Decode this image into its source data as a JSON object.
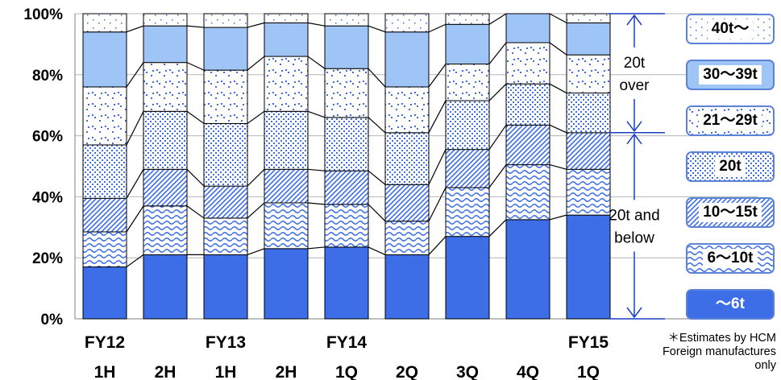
{
  "chart_data": {
    "type": "bar",
    "stacked": true,
    "ylim": [
      0,
      100
    ],
    "yticks": [
      "0%",
      "20%",
      "40%",
      "60%",
      "80%",
      "100%"
    ],
    "categories": [
      {
        "top": "FY12",
        "bottom": "1H"
      },
      {
        "top": "",
        "bottom": "2H"
      },
      {
        "top": "FY13",
        "bottom": "1H"
      },
      {
        "top": "",
        "bottom": "2H"
      },
      {
        "top": "FY14",
        "bottom": "1Q"
      },
      {
        "top": "",
        "bottom": "2Q"
      },
      {
        "top": "",
        "bottom": "3Q"
      },
      {
        "top": "",
        "bottom": "4Q"
      },
      {
        "top": "FY15",
        "bottom": "1Q"
      }
    ],
    "series": [
      {
        "name": "～6t",
        "pattern": "solid",
        "color": "#3d6ee8",
        "values": [
          17,
          21,
          21,
          23,
          23.5,
          21,
          27,
          32.5,
          34
        ]
      },
      {
        "name": "6～10t",
        "pattern": "waves",
        "color": "#3d6ee8",
        "values": [
          11.5,
          16,
          12,
          15,
          14,
          11,
          16,
          18,
          15
        ]
      },
      {
        "name": "10～15t",
        "pattern": "diagonal",
        "color": "#3d6ee8",
        "values": [
          11,
          12,
          10.5,
          11,
          11,
          12,
          12.5,
          13,
          12
        ]
      },
      {
        "name": "20t",
        "pattern": "dense-dots",
        "color": "#3d6ee8",
        "values": [
          17.5,
          19,
          20.5,
          19,
          17.5,
          17,
          16,
          13.5,
          13
        ]
      },
      {
        "name": "21～29t",
        "pattern": "sparse-dots",
        "color": "#3d6ee8",
        "values": [
          19,
          16,
          17.5,
          18,
          16,
          15,
          12,
          13.5,
          12.5
        ]
      },
      {
        "name": "30～39t",
        "pattern": "solid-light",
        "color": "#9ec5f5",
        "values": [
          18,
          12,
          14,
          11,
          14,
          18,
          13,
          9.5,
          10.5
        ]
      },
      {
        "name": "40t～",
        "pattern": "tiny-dots",
        "color": "#3d6ee8",
        "values": [
          6,
          4,
          4.5,
          3,
          4,
          6,
          3.5,
          0,
          3
        ]
      }
    ],
    "legend_order_top_to_bottom": [
      "40t～",
      "30～39t",
      "21～29t",
      "20t",
      "10～15t",
      "6～10t",
      "～6t"
    ],
    "brackets": [
      {
        "label_lines": [
          "20t",
          "over"
        ],
        "from": 61,
        "to": 100
      },
      {
        "label_lines": [
          "20t and",
          "below"
        ],
        "from": 0,
        "to": 61
      }
    ],
    "note_lines": [
      "＊Estimates by HCM",
      "Foreign manufactures",
      "only"
    ]
  }
}
